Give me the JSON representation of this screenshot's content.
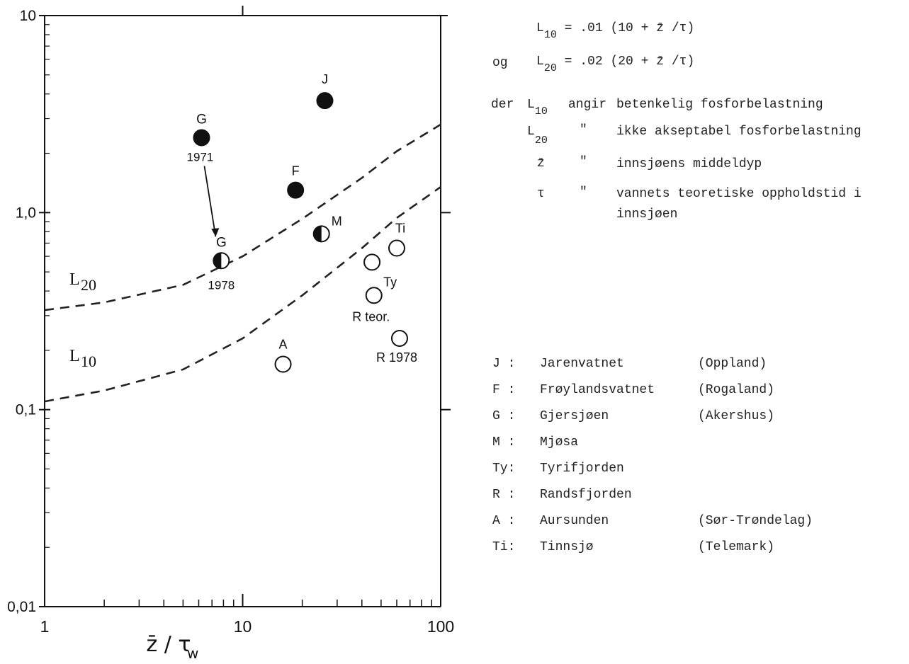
{
  "chart_data": {
    "type": "scatter",
    "x_scale": "log",
    "y_scale": "log",
    "xlim": [
      1,
      100
    ],
    "ylim": [
      0.01,
      10
    ],
    "grid": false,
    "x_ticks": [
      "1",
      "10",
      "100"
    ],
    "y_ticks": [
      "0,01",
      "0,1",
      "1,0",
      "10"
    ],
    "xlabel": "z̄ / τw",
    "curves": [
      {
        "name": "L20",
        "points": [
          [
            1,
            0.32
          ],
          [
            2,
            0.35
          ],
          [
            5,
            0.43
          ],
          [
            10,
            0.6
          ],
          [
            20,
            0.93
          ],
          [
            40,
            1.5
          ],
          [
            60,
            2.05
          ],
          [
            100,
            2.8
          ]
        ]
      },
      {
        "name": "L10",
        "points": [
          [
            1,
            0.11
          ],
          [
            2,
            0.125
          ],
          [
            5,
            0.16
          ],
          [
            10,
            0.23
          ],
          [
            20,
            0.38
          ],
          [
            40,
            0.66
          ],
          [
            60,
            0.94
          ],
          [
            100,
            1.35
          ]
        ]
      }
    ],
    "points": [
      {
        "label": "J",
        "x": 26,
        "y": 3.7,
        "fill": "filled"
      },
      {
        "label": "G",
        "sublabel": "1971",
        "x": 6.2,
        "y": 2.4,
        "fill": "filled"
      },
      {
        "label": "F",
        "x": 18.5,
        "y": 1.3,
        "fill": "filled"
      },
      {
        "label": "M",
        "x": 25,
        "y": 0.78,
        "fill": "half"
      },
      {
        "label": "G",
        "sublabel": "1978",
        "x": 7.8,
        "y": 0.57,
        "fill": "half"
      },
      {
        "label": "Ti",
        "x": 60,
        "y": 0.66,
        "fill": "open"
      },
      {
        "label": "Ty",
        "x": 45,
        "y": 0.56,
        "fill": "open"
      },
      {
        "label": "R teor.",
        "x": 46,
        "y": 0.38,
        "fill": "open"
      },
      {
        "label": "R 1978",
        "x": 62,
        "y": 0.23,
        "fill": "open"
      },
      {
        "label": "A",
        "x": 16,
        "y": 0.17,
        "fill": "open"
      }
    ]
  },
  "formulas": {
    "l10_lhs": "L",
    "l10_sub": "10",
    "l10_rhs": "= .01 (10 + z̄ /τ)",
    "og": "og",
    "l20_lhs": "L",
    "l20_sub": "20",
    "l20_rhs": "= .02 (20 + z̄ /τ)"
  },
  "definitions": {
    "der": "der",
    "l_sym": "L",
    "sub10": "10",
    "sub20": "20",
    "angir": "angir",
    "l10_text": "betenkelig fosforbelastning",
    "ditto": "\"",
    "l20_text": "ikke akseptabel fosforbelastning",
    "zbar": "z̄",
    "z_text": "innsjøens middeldyp",
    "tau": "τ",
    "tau_text_1": "vannets teoretiske oppholdstid i",
    "tau_text_2": "innsjøen"
  },
  "legend": [
    {
      "code": "J :",
      "name": "Jarenvatnet",
      "region": "(Oppland)"
    },
    {
      "code": "F :",
      "name": "Frøylandsvatnet",
      "region": "(Rogaland)"
    },
    {
      "code": "G :",
      "name": "Gjersjøen",
      "region": "(Akershus)"
    },
    {
      "code": "M :",
      "name": "Mjøsa",
      "region": ""
    },
    {
      "code": "Ty:",
      "name": "Tyrifjorden",
      "region": ""
    },
    {
      "code": "R :",
      "name": "Randsfjorden",
      "region": ""
    },
    {
      "code": "A :",
      "name": "Aursunden",
      "region": "(Sør-Trøndelag)"
    },
    {
      "code": "Ti:",
      "name": "Tinnsjø",
      "region": "(Telemark)"
    }
  ],
  "colors": {
    "ink": "#111111",
    "dash": "#222222"
  }
}
